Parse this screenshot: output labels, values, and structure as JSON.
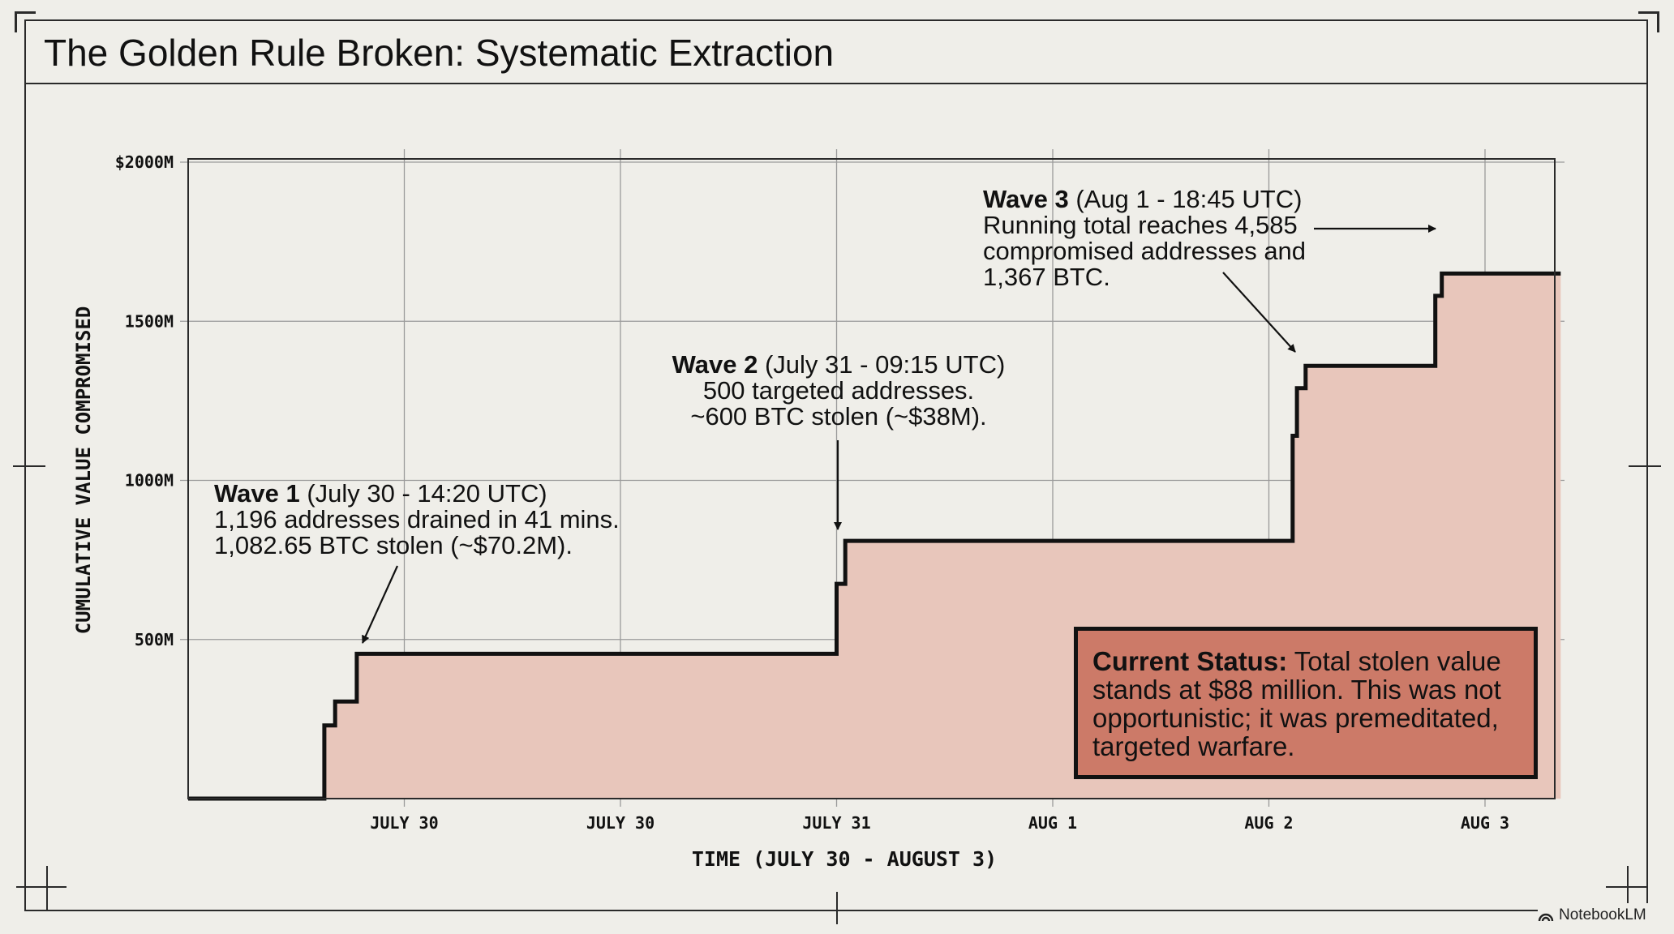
{
  "title": "The Golden Rule Broken: Systematic Extraction",
  "chart_data": {
    "type": "area",
    "style": "step",
    "ylabel": "CUMULATIVE VALUE COMPROMISED",
    "xlabel": "TIME (JULY 30 - AUGUST 3)",
    "ylim": [
      0,
      2000
    ],
    "yticks": [
      {
        "value": 500,
        "label": "500M"
      },
      {
        "value": 1000,
        "label": "1000M"
      },
      {
        "value": 1500,
        "label": "1500M"
      },
      {
        "value": 2000,
        "label": "$2000M"
      }
    ],
    "xlim": [
      0,
      6.35
    ],
    "xticks": [
      {
        "value": 1,
        "label": "JULY 30"
      },
      {
        "value": 2,
        "label": "JULY 30"
      },
      {
        "value": 3,
        "label": "JULY 31"
      },
      {
        "value": 4,
        "label": "AUG 1"
      },
      {
        "value": 5,
        "label": "AUG 2"
      },
      {
        "value": 6,
        "label": "AUG 3"
      }
    ],
    "grid": true,
    "series": [
      {
        "points": [
          [
            0,
            0
          ],
          [
            0.63,
            0
          ],
          [
            0.63,
            230
          ],
          [
            0.68,
            230
          ],
          [
            0.68,
            305
          ],
          [
            0.78,
            305
          ],
          [
            0.78,
            455
          ],
          [
            3.0,
            455
          ],
          [
            3.0,
            675
          ],
          [
            3.04,
            675
          ],
          [
            3.04,
            810
          ],
          [
            5.11,
            810
          ],
          [
            5.11,
            1140
          ],
          [
            5.13,
            1140
          ],
          [
            5.13,
            1290
          ],
          [
            5.17,
            1290
          ],
          [
            5.17,
            1360
          ],
          [
            5.77,
            1360
          ],
          [
            5.77,
            1580
          ],
          [
            5.8,
            1580
          ],
          [
            5.8,
            1650
          ],
          [
            6.35,
            1650
          ]
        ]
      }
    ],
    "annotations": [
      {
        "title": "Wave 1",
        "detail": "(July 30 - 14:20 UTC)",
        "lines": [
          "1,196 addresses drained in 41 mins.",
          "1,082.65 BTC stolen (~$70.2M)."
        ]
      },
      {
        "title": "Wave 2",
        "detail": "(July 31 - 09:15 UTC)",
        "lines": [
          "500 targeted addresses.",
          "~600 BTC stolen (~$38M)."
        ]
      },
      {
        "title": "Wave 3",
        "detail": "(Aug 1 - 18:45 UTC)",
        "lines": [
          "Running total reaches 4,585",
          "compromised addresses and",
          "1,367 BTC."
        ]
      }
    ],
    "status": {
      "label": "Current Status:",
      "text": "Total stolen value stands at $88 million. This was not opportunistic; it was premeditated, targeted warfare."
    }
  },
  "colors": {
    "fill": "#e8c6bb",
    "line": "#111111",
    "grid": "#9a9a9a",
    "status_bg": "#cc7a68"
  },
  "watermark": "NotebookLM"
}
